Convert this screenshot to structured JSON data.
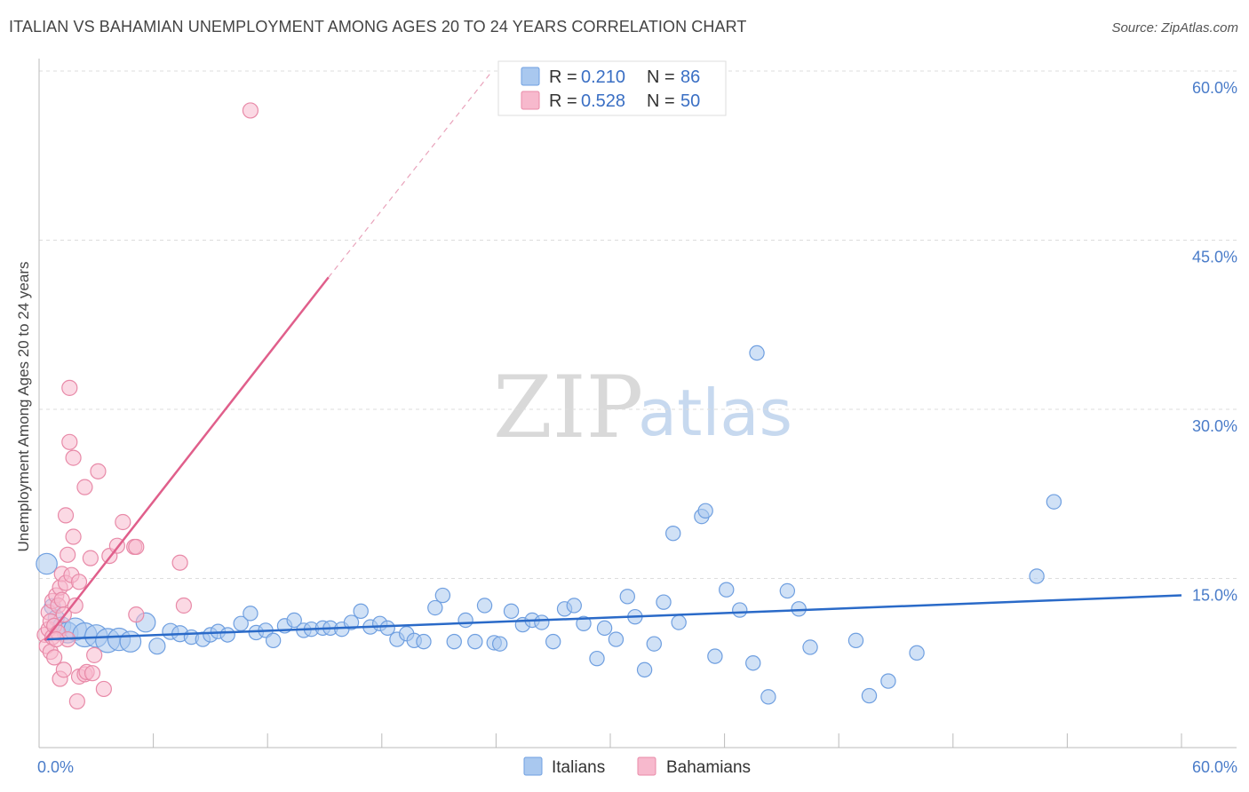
{
  "header": {
    "title": "ITALIAN VS BAHAMIAN UNEMPLOYMENT AMONG AGES 20 TO 24 YEARS CORRELATION CHART",
    "source": "Source: ZipAtlas.com"
  },
  "watermark": {
    "zip": "ZIP",
    "atlas": "atlas"
  },
  "colors": {
    "italians_fill": "#a9c8ef",
    "italians_stroke": "#6f9fe0",
    "italians_line": "#2a6ac8",
    "bahamians_fill": "#f7b9cd",
    "bahamians_stroke": "#e88aa8",
    "bahamians_line": "#e05f8b",
    "grid": "#dddddd",
    "tick_label": "#4a7cc9"
  },
  "legend": {
    "r_label": "R =",
    "n_label": "N =",
    "rows": [
      {
        "series": "Italians",
        "r": "0.210",
        "n": "86"
      },
      {
        "series": "Bahamians",
        "r": "0.528",
        "n": "50"
      }
    ]
  },
  "chart_data": {
    "type": "scatter",
    "title": "ITALIAN VS BAHAMIAN UNEMPLOYMENT AMONG AGES 20 TO 24 YEARS CORRELATION CHART",
    "xlabel": "",
    "ylabel": "Unemployment Among Ages 20 to 24 years",
    "xlim": [
      0,
      60
    ],
    "ylim": [
      0,
      60
    ],
    "x_tick_labels": [
      {
        "value": 0,
        "label": "0.0%"
      },
      {
        "value": 60,
        "label": "60.0%"
      }
    ],
    "x_minor_ticks": [
      0,
      6,
      12,
      18,
      24,
      30,
      36,
      42,
      48,
      54,
      60
    ],
    "y_ticks": [
      {
        "value": 15,
        "label": "15.0%"
      },
      {
        "value": 30,
        "label": "30.0%"
      },
      {
        "value": 45,
        "label": "45.0%"
      },
      {
        "value": 60,
        "label": "60.0%"
      }
    ],
    "grid": true,
    "legend_position": "top-center",
    "series": [
      {
        "name": "Italians",
        "r": 0.21,
        "n": 86,
        "trend": {
          "x0": 0.3,
          "y0": 9.6,
          "x1": 60,
          "y1": 13.5
        },
        "points": [
          [
            0.4,
            16.3,
            1.3
          ],
          [
            0.7,
            12.5,
            1.0
          ],
          [
            0.9,
            11.5,
            1.0
          ],
          [
            1.2,
            10.8,
            1.1
          ],
          [
            1.5,
            10.2,
            1.3
          ],
          [
            1.9,
            10.5,
            1.4
          ],
          [
            2.4,
            10.0,
            1.5
          ],
          [
            3.0,
            9.9,
            1.4
          ],
          [
            3.6,
            9.5,
            1.5
          ],
          [
            4.2,
            9.6,
            1.4
          ],
          [
            4.8,
            9.4,
            1.3
          ],
          [
            5.6,
            11.1,
            1.2
          ],
          [
            6.2,
            9.0,
            1.0
          ],
          [
            6.9,
            10.3,
            1.0
          ],
          [
            7.4,
            10.1,
            1.0
          ],
          [
            8.0,
            9.8,
            0.9
          ],
          [
            8.6,
            9.6,
            0.9
          ],
          [
            9.0,
            10.0,
            0.9
          ],
          [
            9.4,
            10.3,
            0.9
          ],
          [
            9.9,
            10.0,
            0.9
          ],
          [
            10.6,
            11.0,
            0.9
          ],
          [
            11.1,
            11.9,
            0.9
          ],
          [
            11.4,
            10.2,
            0.9
          ],
          [
            11.9,
            10.4,
            0.9
          ],
          [
            12.3,
            9.5,
            0.9
          ],
          [
            12.9,
            10.8,
            0.9
          ],
          [
            13.4,
            11.3,
            0.9
          ],
          [
            13.9,
            10.4,
            0.9
          ],
          [
            14.3,
            10.5,
            0.9
          ],
          [
            14.9,
            10.6,
            0.9
          ],
          [
            15.3,
            10.6,
            0.9
          ],
          [
            15.9,
            10.5,
            0.9
          ],
          [
            16.4,
            11.1,
            0.9
          ],
          [
            16.9,
            12.1,
            0.9
          ],
          [
            17.4,
            10.7,
            0.9
          ],
          [
            17.9,
            11.0,
            0.9
          ],
          [
            18.3,
            10.6,
            0.9
          ],
          [
            18.8,
            9.6,
            0.9
          ],
          [
            19.3,
            10.1,
            0.9
          ],
          [
            19.7,
            9.5,
            0.9
          ],
          [
            20.2,
            9.4,
            0.9
          ],
          [
            20.8,
            12.4,
            0.9
          ],
          [
            21.2,
            13.5,
            0.9
          ],
          [
            21.8,
            9.4,
            0.9
          ],
          [
            22.4,
            11.3,
            0.9
          ],
          [
            22.9,
            9.4,
            0.9
          ],
          [
            23.4,
            12.6,
            0.9
          ],
          [
            23.9,
            9.3,
            0.9
          ],
          [
            24.2,
            9.2,
            0.9
          ],
          [
            24.8,
            12.1,
            0.9
          ],
          [
            25.4,
            10.9,
            0.9
          ],
          [
            25.9,
            11.3,
            0.9
          ],
          [
            26.4,
            11.1,
            0.9
          ],
          [
            27.0,
            9.4,
            0.9
          ],
          [
            27.6,
            12.3,
            0.9
          ],
          [
            28.1,
            12.6,
            0.9
          ],
          [
            28.6,
            11.0,
            0.9
          ],
          [
            29.3,
            7.9,
            0.9
          ],
          [
            29.7,
            10.6,
            0.9
          ],
          [
            30.3,
            9.6,
            0.9
          ],
          [
            30.9,
            13.4,
            0.9
          ],
          [
            31.3,
            11.6,
            0.9
          ],
          [
            31.8,
            6.9,
            0.9
          ],
          [
            32.3,
            9.2,
            0.9
          ],
          [
            32.8,
            12.9,
            0.9
          ],
          [
            33.3,
            19.0,
            0.9
          ],
          [
            33.6,
            11.1,
            0.9
          ],
          [
            34.8,
            20.5,
            0.9
          ],
          [
            35.0,
            21.0,
            0.9
          ],
          [
            35.5,
            8.1,
            0.9
          ],
          [
            36.1,
            14.0,
            0.9
          ],
          [
            36.8,
            12.2,
            0.9
          ],
          [
            37.5,
            7.5,
            0.9
          ],
          [
            37.7,
            35.0,
            0.9
          ],
          [
            38.3,
            4.5,
            0.9
          ],
          [
            39.3,
            13.9,
            0.9
          ],
          [
            39.9,
            12.3,
            0.9
          ],
          [
            40.5,
            8.9,
            0.9
          ],
          [
            42.9,
            9.5,
            0.9
          ],
          [
            43.6,
            4.6,
            0.9
          ],
          [
            44.6,
            5.9,
            0.9
          ],
          [
            46.1,
            8.4,
            0.9
          ],
          [
            52.4,
            15.2,
            0.9
          ],
          [
            53.3,
            21.8,
            0.9
          ]
        ]
      },
      {
        "name": "Bahamians",
        "r": 0.528,
        "n": 50,
        "trend": {
          "x0": 0.3,
          "y0": 9.5,
          "x1": 15.2,
          "y1": 41.7,
          "dash_x0": 15.2,
          "dash_y0": 41.7,
          "dash_x1": 23.8,
          "dash_y1": 60.0
        },
        "points": [
          [
            0.3,
            10.0,
            1.0
          ],
          [
            0.4,
            9.0,
            1.0
          ],
          [
            0.5,
            12.0,
            1.0
          ],
          [
            0.5,
            10.5,
            1.0
          ],
          [
            0.6,
            11.2,
            1.0
          ],
          [
            0.6,
            8.5,
            1.0
          ],
          [
            0.7,
            13.0,
            1.0
          ],
          [
            0.7,
            9.8,
            1.0
          ],
          [
            0.8,
            10.8,
            1.0
          ],
          [
            0.8,
            8.0,
            1.0
          ],
          [
            0.9,
            13.5,
            1.0
          ],
          [
            1.0,
            12.6,
            1.0
          ],
          [
            1.0,
            10.2,
            1.0
          ],
          [
            1.1,
            14.2,
            1.0
          ],
          [
            1.1,
            6.1,
            1.0
          ],
          [
            1.2,
            15.4,
            1.0
          ],
          [
            1.2,
            13.1,
            1.0
          ],
          [
            1.3,
            11.8,
            1.0
          ],
          [
            1.3,
            6.9,
            1.0
          ],
          [
            1.4,
            20.6,
            1.0
          ],
          [
            1.4,
            14.6,
            1.0
          ],
          [
            1.5,
            9.6,
            1.0
          ],
          [
            1.5,
            17.1,
            1.0
          ],
          [
            1.6,
            27.1,
            1.0
          ],
          [
            1.6,
            31.9,
            1.0
          ],
          [
            1.7,
            15.3,
            1.0
          ],
          [
            1.8,
            25.7,
            1.0
          ],
          [
            1.8,
            18.7,
            1.0
          ],
          [
            1.9,
            12.6,
            1.0
          ],
          [
            2.0,
            4.1,
            1.0
          ],
          [
            2.1,
            14.7,
            1.0
          ],
          [
            2.1,
            6.3,
            1.0
          ],
          [
            2.4,
            23.1,
            1.0
          ],
          [
            2.4,
            6.5,
            1.0
          ],
          [
            2.5,
            6.7,
            1.0
          ],
          [
            2.7,
            16.8,
            1.0
          ],
          [
            2.9,
            8.2,
            1.0
          ],
          [
            3.1,
            24.5,
            1.0
          ],
          [
            3.4,
            5.2,
            1.0
          ],
          [
            3.7,
            17.0,
            1.0
          ],
          [
            4.1,
            17.9,
            1.0
          ],
          [
            4.4,
            20.0,
            1.0
          ],
          [
            5.0,
            17.8,
            1.0
          ],
          [
            5.1,
            17.8,
            1.0
          ],
          [
            5.1,
            11.8,
            1.0
          ],
          [
            7.4,
            16.4,
            1.0
          ],
          [
            7.6,
            12.6,
            1.0
          ],
          [
            11.1,
            56.5,
            1.0
          ],
          [
            0.9,
            9.6,
            1.0
          ],
          [
            2.8,
            6.6,
            1.0
          ]
        ]
      }
    ]
  }
}
